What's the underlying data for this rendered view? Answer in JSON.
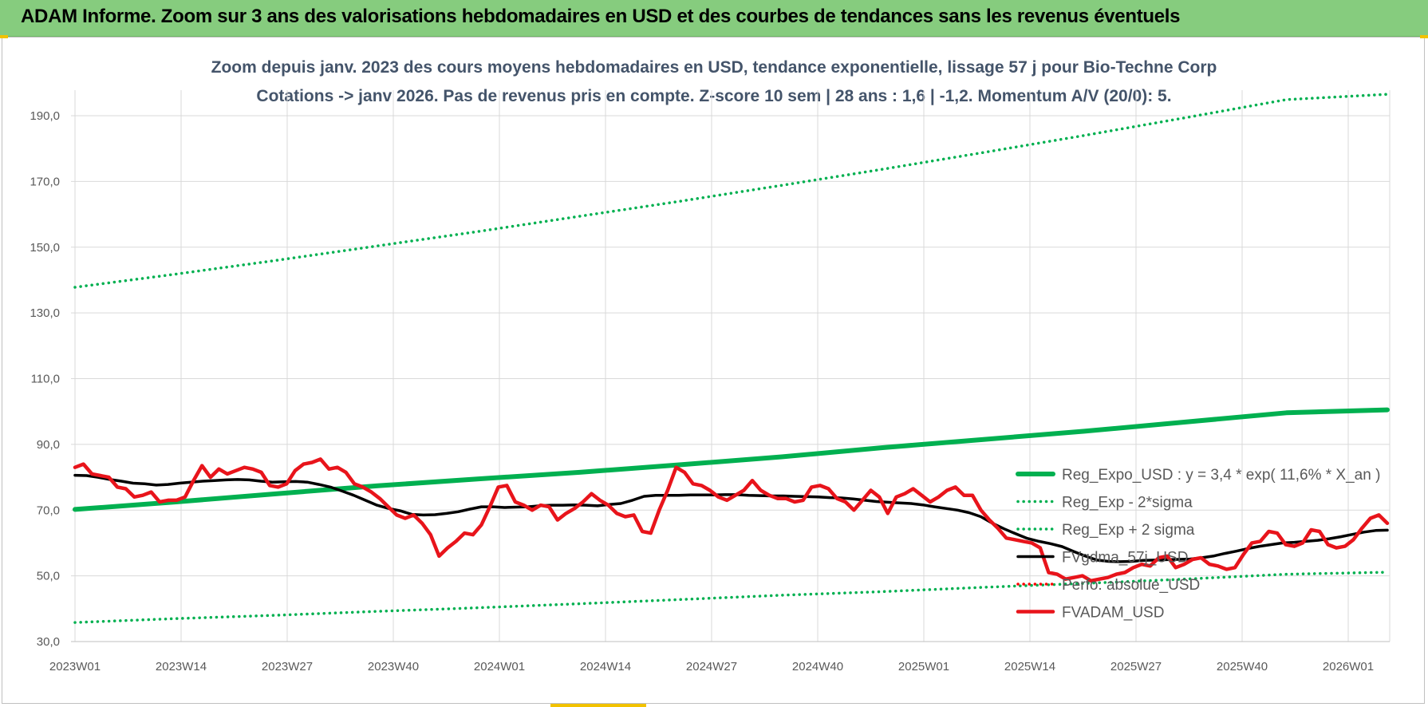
{
  "header": {
    "title": "ADAM Informe. Zoom sur 3 ans des valorisations hebdomadaires en USD et des courbes de tendances sans les revenus éventuels"
  },
  "chart_data": {
    "type": "line",
    "title_line1": "Zoom depuis janv. 2023 des cours moyens hebdomadaires en USD, tendance exponentielle, lissage 57 j pour Bio-Techne Corp",
    "title_line2": "Cotations -> janv 2026. Pas de revenus pris en compte. Z-score 10 sem | 28 ans : 1,6 | -1,2. Momentum A/V (20/0): 5.",
    "x_ticks": [
      "2023W01",
      "2023W14",
      "2023W27",
      "2023W40",
      "2024W01",
      "2024W14",
      "2024W27",
      "2024W40",
      "2025W01",
      "2025W14",
      "2025W27",
      "2025W40",
      "2026W01"
    ],
    "y_ticks": [
      "30,0",
      "50,0",
      "70,0",
      "90,0",
      "110,0",
      "130,0",
      "150,0",
      "170,0",
      "190,0"
    ],
    "ylim": [
      30,
      200
    ],
    "grid": true,
    "legend_position": "right",
    "series": [
      {
        "name": "Reg_Expo_USD : y = 3,4 * exp( 11,6% *  X_an )",
        "color": "#00b050",
        "style": "solid-thick",
        "values": [
          70.2,
          72.5,
          75.0,
          77.4,
          79.5,
          81.5,
          83.8,
          86.2,
          89.0,
          91.5,
          94.0,
          96.8,
          99.6,
          100.5
        ]
      },
      {
        "name": "Reg_Exp - 2*sigma",
        "color": "#00b050",
        "style": "dotted",
        "values": [
          35.8,
          37.0,
          38.0,
          39.2,
          40.3,
          41.5,
          42.8,
          44.1,
          45.2,
          46.5,
          47.7,
          49.0,
          50.5,
          51.1
        ]
      },
      {
        "name": "Reg_Exp + 2 sigma",
        "color": "#00b050",
        "style": "dotted",
        "values": [
          137.8,
          141.8,
          146.0,
          150.4,
          154.8,
          159.4,
          164.0,
          168.8,
          173.7,
          178.8,
          184.0,
          189.4,
          194.9,
          196.5
        ]
      },
      {
        "name": "FVgdma_57j_USD",
        "color": "#000000",
        "style": "solid",
        "values": [
          80.6,
          80.5,
          80.0,
          79.3,
          78.8,
          78.2,
          78.0,
          77.6,
          77.8,
          78.2,
          78.5,
          78.8,
          79.0,
          79.2,
          79.3,
          79.2,
          78.8,
          78.5,
          78.6,
          78.7,
          78.5,
          77.8,
          77.0,
          75.8,
          74.5,
          73.0,
          71.5,
          70.5,
          69.8,
          68.7,
          68.5,
          68.6,
          69.0,
          69.5,
          70.3,
          71.0,
          71.0,
          70.8,
          70.9,
          71.0,
          71.3,
          71.5,
          71.5,
          71.6,
          71.5,
          71.3,
          71.7,
          72.0,
          73.0,
          74.2,
          74.5,
          74.5,
          74.5,
          74.6,
          74.6,
          74.6,
          74.7,
          74.7,
          74.5,
          74.4,
          74.3,
          74.3,
          74.2,
          74.1,
          74.0,
          73.8,
          73.7,
          73.4,
          73.0,
          72.6,
          72.4,
          72.2,
          72.0,
          71.6,
          71.0,
          70.5,
          70.0,
          69.2,
          68.0,
          66.0,
          64.3,
          62.8,
          61.4,
          60.5,
          59.8,
          58.9,
          57.4,
          56.0,
          54.8,
          54.4,
          54.3,
          54.4,
          54.7,
          54.8,
          54.9,
          55.0,
          55.1,
          55.5,
          56.0,
          56.8,
          57.5,
          58.3,
          59.0,
          59.5,
          60.0,
          60.2,
          60.5,
          60.8,
          61.3,
          61.9,
          62.6,
          63.3,
          63.8,
          63.9
        ]
      },
      {
        "name": "Perfo. absolue_USD",
        "color": "#ff0000",
        "style": "dotted",
        "values": []
      },
      {
        "name": "FVADAM_USD",
        "color": "#e8141b",
        "style": "solid-thick",
        "values": [
          83.0,
          84.0,
          81.0,
          80.5,
          80.0,
          77.0,
          76.5,
          74.0,
          74.5,
          75.5,
          72.5,
          73.0,
          73.0,
          74.0,
          79.0,
          83.5,
          80.0,
          82.5,
          81.0,
          82.0,
          83.0,
          82.5,
          81.5,
          77.5,
          77.0,
          78.0,
          82.0,
          84.0,
          84.5,
          85.5,
          82.5,
          83.0,
          81.5,
          78.0,
          77.0,
          75.5,
          73.5,
          71.0,
          68.5,
          67.5,
          68.5,
          66.0,
          62.5,
          56.0,
          58.5,
          60.5,
          63.0,
          62.5,
          65.5,
          71.0,
          77.0,
          77.5,
          72.5,
          71.5,
          70.0,
          71.5,
          71.0,
          67.0,
          69.0,
          70.5,
          72.5,
          75.0,
          73.0,
          71.5,
          69.0,
          68.0,
          68.5,
          63.5,
          63.0,
          70.0,
          76.0,
          83.0,
          81.5,
          78.0,
          77.5,
          76.0,
          74.0,
          73.0,
          74.5,
          76.0,
          79.0,
          76.0,
          74.5,
          73.5,
          73.5,
          72.5,
          73.0,
          77.0,
          77.5,
          76.5,
          73.5,
          72.5,
          70.0,
          73.0,
          76.0,
          74.0,
          69.0,
          74.0,
          75.0,
          76.5,
          74.5,
          72.5,
          74.0,
          76.0,
          77.0,
          74.5,
          74.5,
          70.0,
          67.0,
          64.5,
          61.5,
          61.0,
          60.5,
          60.0,
          58.5,
          51.0,
          50.5,
          49.0,
          49.5,
          50.0,
          48.5,
          49.0,
          49.5,
          50.5,
          51.0,
          52.5,
          53.5,
          53.0,
          55.5,
          56.0,
          52.5,
          53.5,
          55.0,
          55.5,
          53.5,
          53.0,
          52.0,
          52.5,
          56.5,
          60.0,
          60.5,
          63.5,
          63.0,
          59.5,
          59.0,
          60.0,
          64.0,
          63.5,
          59.5,
          58.5,
          59.0,
          61.0,
          64.5,
          67.5,
          68.5,
          66.0
        ]
      }
    ]
  }
}
